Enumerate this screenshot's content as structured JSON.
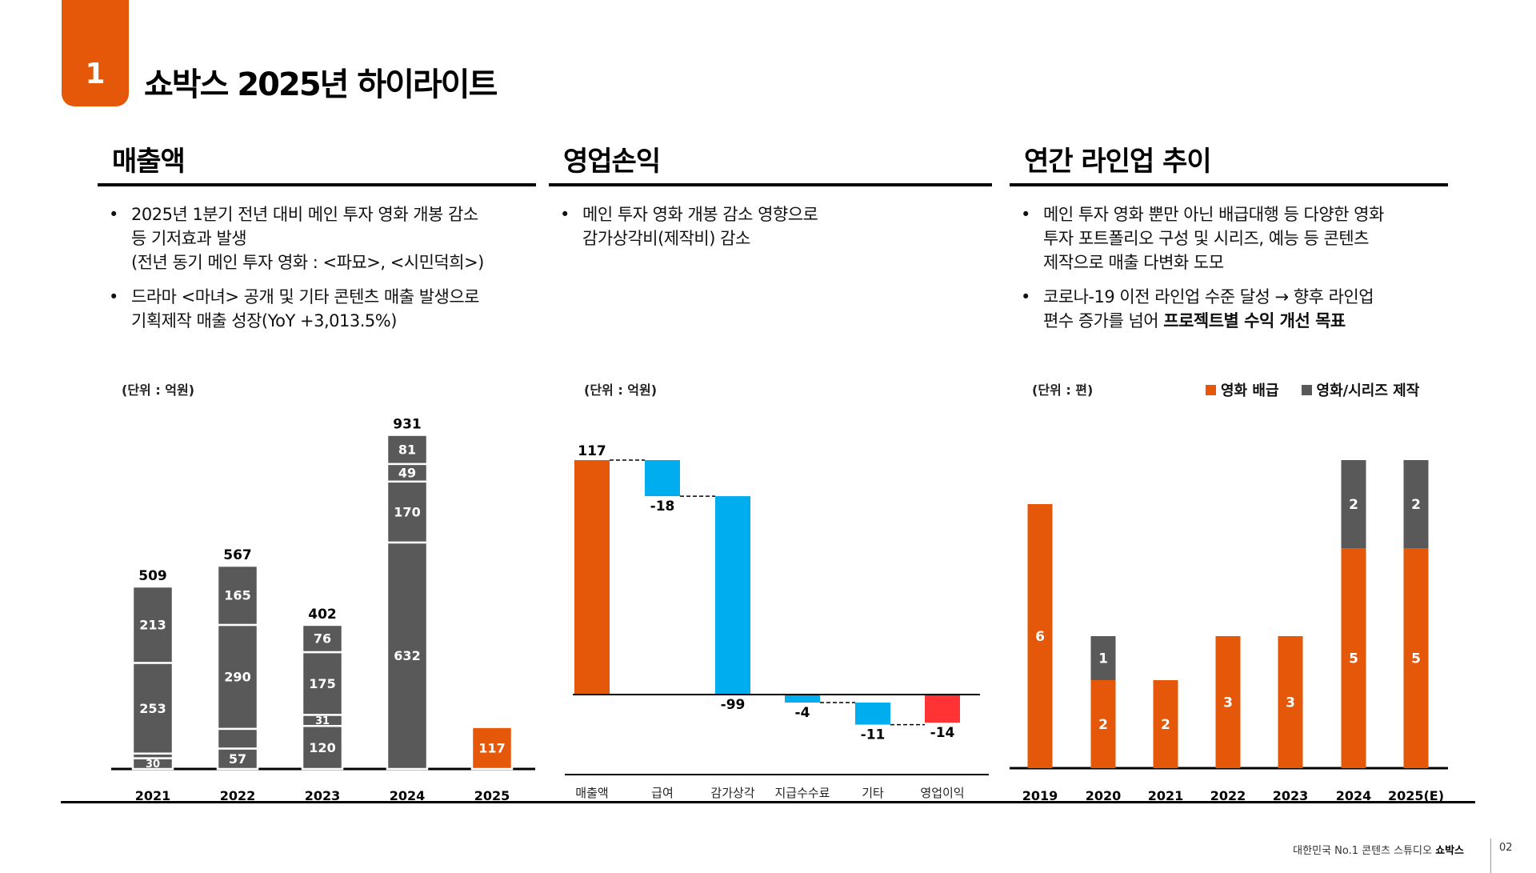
{
  "header": {
    "section_number": "1",
    "title": "쇼박스 2025년 하이라이트"
  },
  "sections": [
    {
      "title": "매출액",
      "bullets": [
        "2025년 1분기 전년 대비 메인 투자 영화 개봉 감소\n등 기저효과 발생\n(전년 동기 메인 투자 영화 : <파묘>, <시민덕희>)",
        "드라마 <마녀> 공개 및 기타 콘텐츠 매출 발생으로\n기획제작 매출 성장(YoY +3,013.5%)"
      ],
      "unit": "(단위 : 억원)"
    },
    {
      "title": "영업손익",
      "bullets": [
        "메인 투자 영화 개봉 감소 영향으로\n감가상각비(제작비) 감소"
      ],
      "unit": "(단위 : 억원)"
    },
    {
      "title": "연간 라인업 추이",
      "bullets": [
        "메인 투자 영화 뿐만 아닌 배급대행 등 다양한 영화\n투자 포트폴리오 구성 및 시리즈, 예능 등 콘텐츠\n제작으로 매출 다변화 도모"
      ],
      "bullet2_plain": "코로나-19 이전 라인업 수준 달성 → 향후 라인업\n편수 증가를 넘어 ",
      "bullet2_bold": "프로젝트별 수익 개선 목표",
      "unit": "(단위 : 편)"
    }
  ],
  "colors": {
    "orange": "#E5580A",
    "gray": "#595959",
    "cyan": "#00AEEF",
    "red": "#FF3333"
  },
  "chart_data": [
    {
      "type": "bar",
      "stacked": true,
      "title": "매출액",
      "ylabel": "(단위 : 억원)",
      "categories": [
        "2021",
        "2022",
        "2023",
        "2024",
        "2025"
      ],
      "totals": [
        "509",
        "567",
        "402",
        "931",
        ""
      ],
      "stacks": [
        [
          {
            "value": 30,
            "label": "30",
            "color": "gray"
          },
          {
            "value": 13,
            "label": "",
            "color": "gray"
          },
          {
            "value": 253,
            "label": "253",
            "color": "gray"
          },
          {
            "value": 213,
            "label": "213",
            "color": "gray"
          }
        ],
        [
          {
            "value": 57,
            "label": "57",
            "color": "gray"
          },
          {
            "value": 55,
            "label": "",
            "color": "gray"
          },
          {
            "value": 290,
            "label": "290",
            "color": "gray"
          },
          {
            "value": 165,
            "label": "165",
            "color": "gray"
          }
        ],
        [
          {
            "value": 120,
            "label": "120",
            "color": "gray"
          },
          {
            "value": 31,
            "label": "31",
            "color": "gray"
          },
          {
            "value": 175,
            "label": "175",
            "color": "gray"
          },
          {
            "value": 76,
            "label": "76",
            "color": "gray"
          }
        ],
        [
          {
            "value": 632,
            "label": "632",
            "color": "gray"
          },
          {
            "value": 170,
            "label": "170",
            "color": "gray"
          },
          {
            "value": 49,
            "label": "49",
            "color": "gray"
          },
          {
            "value": 81,
            "label": "81",
            "color": "gray"
          }
        ],
        [
          {
            "value": 117,
            "label": "117",
            "color": "orange"
          }
        ]
      ],
      "ylim": [
        0,
        931
      ]
    },
    {
      "type": "bar",
      "subtype": "waterfall",
      "title": "영업손익",
      "ylabel": "(단위 : 억원)",
      "categories": [
        "매출액",
        "급여",
        "감가상각",
        "지급수수료",
        "기타",
        "영업이익"
      ],
      "values": [
        117,
        -18,
        -99,
        -4,
        -11,
        -14
      ],
      "labels": [
        "117",
        "-18",
        "-99",
        "-4",
        "-11",
        "-14"
      ],
      "kinds": [
        "total",
        "delta",
        "delta",
        "delta",
        "delta",
        "total"
      ],
      "bar_colors": [
        "orange",
        "cyan",
        "cyan",
        "cyan",
        "cyan",
        "red"
      ],
      "ylim": [
        -30,
        117
      ]
    },
    {
      "type": "bar",
      "stacked": true,
      "title": "연간 라인업 추이",
      "ylabel": "(단위 : 편)",
      "categories": [
        "2019",
        "2020",
        "2021",
        "2022",
        "2023",
        "2024",
        "2025(E)"
      ],
      "series": [
        {
          "name": "영화 배급",
          "color": "orange",
          "values": [
            6,
            2,
            2,
            3,
            3,
            5,
            5
          ]
        },
        {
          "name": "영화/시리즈 제작",
          "color": "gray",
          "values": [
            0,
            1,
            0,
            0,
            0,
            2,
            2
          ]
        }
      ],
      "legend": "top-right",
      "ylim": [
        0,
        7
      ]
    }
  ],
  "footer": {
    "tagline": "대한민국 No.1 콘텐츠 스튜디오 ",
    "brand": "쇼박스",
    "page": "02"
  }
}
